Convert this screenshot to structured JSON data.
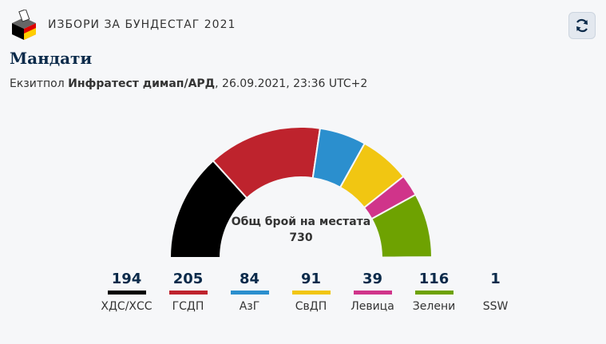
{
  "header": {
    "title": "ИЗБОРИ ЗА БУНДЕСТАГ 2021"
  },
  "page_title": "Мандати",
  "subtitle": {
    "prefix": "Екзитпол ",
    "source": "Инфратест димап/АРД",
    "suffix": ", 26.09.2021, 23:36 UTC+2"
  },
  "chart_data": {
    "type": "semicircle",
    "center_label": "Общ брой на местата",
    "total": "730",
    "parties": [
      {
        "name": "ХДС/ХСС",
        "seats": 194,
        "color": "#000000"
      },
      {
        "name": "ГСДП",
        "seats": 205,
        "color": "#be232d"
      },
      {
        "name": "АзГ",
        "seats": 84,
        "color": "#2b8fce"
      },
      {
        "name": "СвДП",
        "seats": 91,
        "color": "#f1c612"
      },
      {
        "name": "Левица",
        "seats": 39,
        "color": "#d0348a"
      },
      {
        "name": "Зелени",
        "seats": 116,
        "color": "#6ea201"
      },
      {
        "name": "SSW",
        "seats": 1,
        "color": "#1f73b7"
      }
    ]
  }
}
